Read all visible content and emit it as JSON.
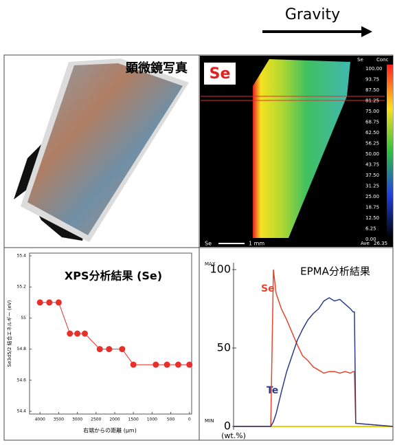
{
  "header": {
    "gravity": "Gravity"
  },
  "panels": {
    "micrograph": {
      "label": "顕微鏡写真"
    },
    "se_map": {
      "element": "Se",
      "corner_element": "Se",
      "corner_unit": "Conc",
      "scale": [
        "100.00",
        "93.75",
        "87.50",
        "81.25",
        "75.00",
        "68.75",
        "62.50",
        "56.25",
        "50.00",
        "43.75",
        "37.50",
        "31.25",
        "25.00",
        "18.75",
        "12.50",
        "6.25",
        "0.00"
      ],
      "bar_element": "Se",
      "bar_length": "1 mm",
      "ave_label": "Ave",
      "ave_value": "26.35"
    }
  },
  "chart_data": [
    {
      "type": "line",
      "title": "XPS分析結果 (Se)",
      "ylabel": "Se3d5/2 結合エネルギー (eV)",
      "xlabel": "右端からの距離 (μm)",
      "markers": true,
      "x": [
        4000,
        3750,
        3500,
        3200,
        3000,
        2800,
        2400,
        2150,
        1800,
        1500,
        900,
        600,
        300,
        0
      ],
      "series": [
        {
          "name": "Se",
          "color": "#e8302a",
          "values": [
            55.1,
            55.1,
            55.1,
            54.9,
            54.9,
            54.9,
            54.8,
            54.8,
            54.8,
            54.7,
            54.7,
            54.7,
            54.7,
            54.7
          ]
        }
      ],
      "xlim": [
        4280,
        -60
      ],
      "xticks": [
        4000,
        3500,
        3000,
        2500,
        2000,
        1500,
        1000,
        500,
        0
      ],
      "ylim": [
        54.4,
        55.4
      ],
      "yticks": [
        54.4,
        54.6,
        54.8,
        55,
        55.2,
        55.4
      ]
    },
    {
      "type": "line",
      "title": "EPMA分析結果",
      "ylabel": "(wt.%)",
      "max_label": "MAX",
      "min_label": "MIN",
      "markers": false,
      "x": [
        0,
        13,
        14,
        15,
        16,
        17,
        18,
        20,
        22,
        24,
        26,
        28,
        30,
        32,
        34,
        36,
        38,
        40,
        42,
        44,
        45,
        45.5,
        46,
        60
      ],
      "series": [
        {
          "name": "Se",
          "color": "#e8442a",
          "values": [
            0,
            0,
            0,
            100,
            85,
            80,
            75,
            68,
            60,
            52,
            45,
            42,
            38,
            36,
            34,
            35,
            35,
            34,
            35,
            34,
            35,
            35,
            2,
            0
          ]
        },
        {
          "name": "Te",
          "color": "#2b3a8c",
          "values": [
            0,
            0,
            0,
            3,
            8,
            15,
            22,
            35,
            45,
            55,
            62,
            68,
            72,
            75,
            80,
            82,
            80,
            81,
            78,
            75,
            73,
            73,
            2,
            0
          ]
        }
      ],
      "xlim": [
        0,
        60
      ],
      "ylim": [
        0,
        100
      ],
      "yticks": [
        0,
        50,
        100
      ]
    }
  ]
}
